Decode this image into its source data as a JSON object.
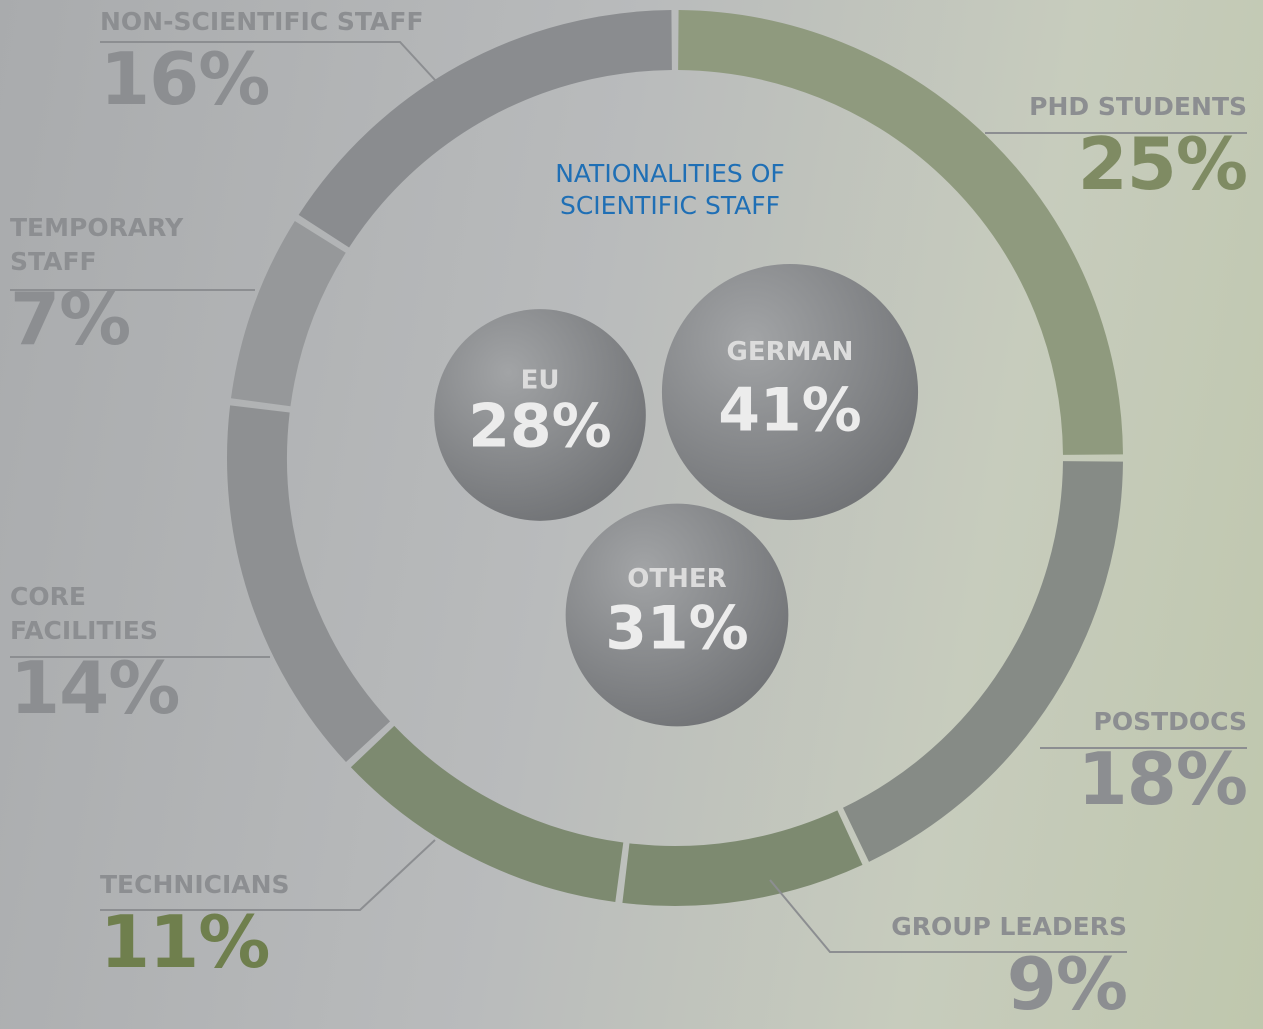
{
  "chart_data": [
    {
      "type": "donut",
      "categories": [
        "PHD STUDENTS",
        "POSTDOCS",
        "GROUP LEADERS",
        "TECHNICIANS",
        "CORE FACILITIES",
        "TEMPORARY STAFF",
        "NON-SCIENTIFIC STAFF"
      ],
      "values": [
        25,
        18,
        9,
        11,
        14,
        7,
        16
      ],
      "value_labels": [
        "25%",
        "18%",
        "9%",
        "11%",
        "14%",
        "7%",
        "16%"
      ],
      "colors": [
        "#8f9a7e",
        "#868b86",
        "#7d8a70",
        "#7d8a70",
        "#8e9092",
        "#96989a",
        "#8a8c8f"
      ]
    },
    {
      "type": "bubble",
      "title": "NATIONALITIES OF SCIENTIFIC STAFF",
      "categories": [
        "EU",
        "GERMAN",
        "OTHER"
      ],
      "values": [
        28,
        41,
        31
      ],
      "value_labels": [
        "28%",
        "41%",
        "31%"
      ],
      "color": "#7d7f82"
    }
  ]
}
